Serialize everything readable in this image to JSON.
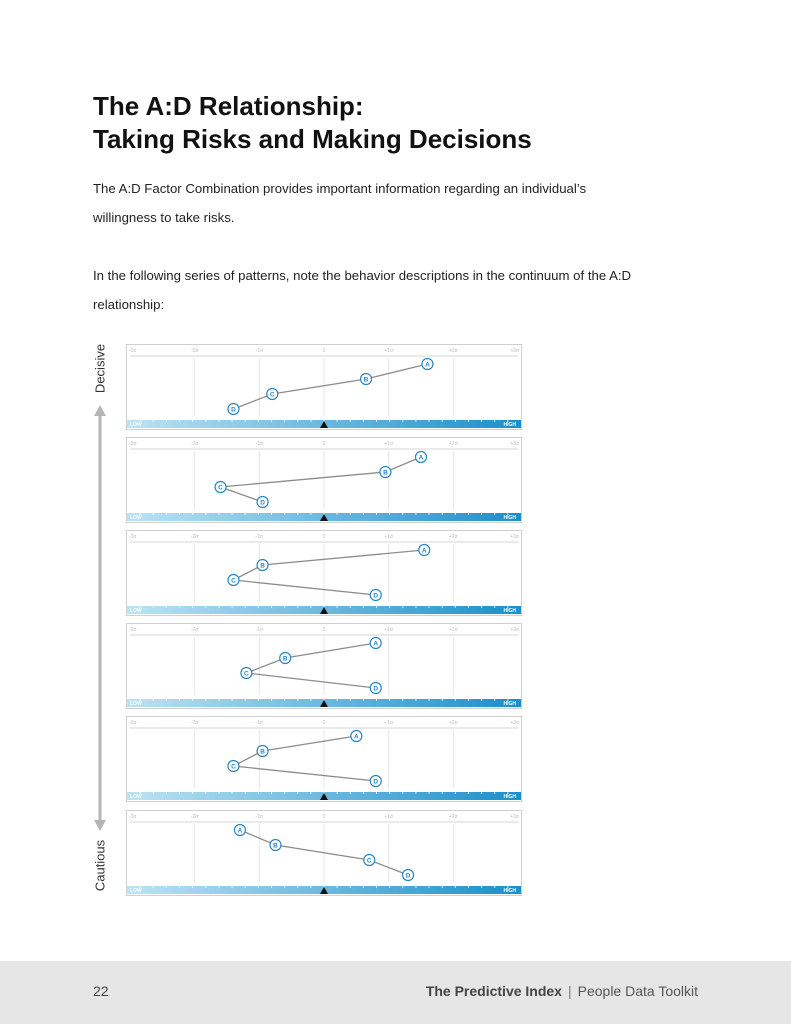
{
  "heading": {
    "line1": "The A:D Relationship:",
    "line2": "Taking Risks and Making Decisions"
  },
  "intro_text": "The A:D Factor Combination provides important information regarding an individual’s willingness to take risks.",
  "patterns_intro": "In the following series of patterns, note the behavior descriptions in the continuum of the A:D relationship:",
  "scale": {
    "top_label": "Decisive",
    "bottom_label": "Cautious"
  },
  "chart_data": {
    "type": "line",
    "x_ticks": [
      "-3σ",
      "-2σ",
      "-1σ",
      "0",
      "+1σ",
      "+2σ",
      "+3σ"
    ],
    "xlim": [
      -3,
      3
    ],
    "bar_labels": {
      "low": "LOW",
      "high": "HIGH"
    },
    "colors": {
      "bar_start": "#bde3f3",
      "bar_end": "#1a8fcb",
      "marker_stroke": "#2b86c0",
      "line": "#8c8c8c"
    },
    "factor_order": [
      "A",
      "B",
      "C",
      "D"
    ],
    "patterns": [
      {
        "name": "pattern-1",
        "values": {
          "A": 1.6,
          "B": 0.65,
          "C": -0.8,
          "D": -1.4
        }
      },
      {
        "name": "pattern-2",
        "values": {
          "A": 1.5,
          "B": 0.95,
          "C": -1.6,
          "D": -0.95
        }
      },
      {
        "name": "pattern-3",
        "values": {
          "A": 1.55,
          "B": -0.95,
          "C": -1.4,
          "D": 0.8
        }
      },
      {
        "name": "pattern-4",
        "values": {
          "A": 0.8,
          "B": -0.6,
          "C": -1.2,
          "D": 0.8
        }
      },
      {
        "name": "pattern-5",
        "values": {
          "A": 0.5,
          "B": -0.95,
          "C": -1.4,
          "D": 0.8
        }
      },
      {
        "name": "pattern-6",
        "values": {
          "A": -1.3,
          "B": -0.75,
          "C": 0.7,
          "D": 1.3
        }
      }
    ]
  },
  "footer": {
    "page_number": "22",
    "brand": "The Predictive Index",
    "separator": "|",
    "product": "People Data Toolkit"
  }
}
